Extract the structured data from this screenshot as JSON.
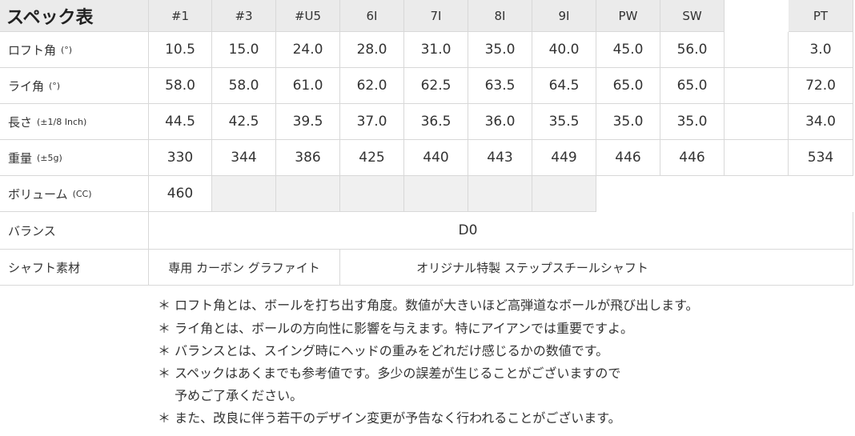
{
  "table": {
    "title": "スペック表",
    "columns": [
      "#1",
      "#3",
      "#U5",
      "6I",
      "7I",
      "8I",
      "9I",
      "PW",
      "SW",
      "PT"
    ],
    "rows": [
      {
        "label": "ロフト角",
        "unit": "(°)",
        "values": [
          "10.5",
          "15.0",
          "24.0",
          "28.0",
          "31.0",
          "35.0",
          "40.0",
          "45.0",
          "56.0",
          "3.0"
        ]
      },
      {
        "label": "ライ角",
        "unit": "(°)",
        "values": [
          "58.0",
          "58.0",
          "61.0",
          "62.0",
          "62.5",
          "63.5",
          "64.5",
          "65.0",
          "65.0",
          "72.0"
        ]
      },
      {
        "label": "長さ",
        "unit": "(±1/8 Inch)",
        "values": [
          "44.5",
          "42.5",
          "39.5",
          "37.0",
          "36.5",
          "36.0",
          "35.5",
          "35.0",
          "35.0",
          "34.0"
        ]
      },
      {
        "label": "重量",
        "unit": "(±5g)",
        "values": [
          "330",
          "344",
          "386",
          "425",
          "440",
          "443",
          "449",
          "446",
          "446",
          "534"
        ]
      }
    ],
    "volume": {
      "label": "ボリューム",
      "unit": "(CC)",
      "value": "460"
    },
    "balance": {
      "label": "バランス",
      "value": "D0"
    },
    "shaft": {
      "label": "シャフト素材",
      "driver": "専用 カーボン グラファイト",
      "others": "オリジナル特製 ステップスチールシャフト"
    }
  },
  "notes": [
    "＊ ロフト角とは、ボールを打ち出す角度。数値が大きいほど高弾道なボールが飛び出します。",
    "＊ ライ角とは、ボールの方向性に影響を与えます。特にアイアンでは重要ですよ。",
    "＊ バランスとは、スイング時にヘッドの重みをどれだけ感じるかの数値です。",
    "＊ スペックはあくまでも参考値です。多少の誤差が生じることがございますので",
    "　 予めご了承ください。",
    "＊ また、改良に伴う若干のデザイン変更が予告なく行われることがございます。"
  ]
}
